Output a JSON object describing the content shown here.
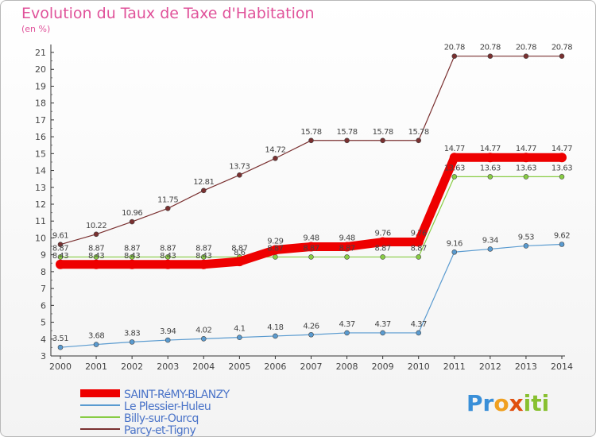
{
  "header": {
    "title": "Evolution du Taux de Taxe d'Habitation",
    "subtitle": "(en %)"
  },
  "logo": {
    "parts": [
      "Pr",
      "o",
      "x",
      "iti"
    ]
  },
  "chart_data": {
    "type": "line",
    "title": "Evolution du Taux de Taxe d'Habitation",
    "subtitle": "(en %)",
    "xlabel": "",
    "ylabel": "",
    "x": [
      2000,
      2001,
      2002,
      2003,
      2004,
      2005,
      2006,
      2007,
      2008,
      2009,
      2010,
      2011,
      2012,
      2013,
      2014
    ],
    "ylim": [
      3,
      21
    ],
    "yticks": [
      3,
      4,
      5,
      6,
      7,
      8,
      9,
      10,
      11,
      12,
      13,
      14,
      15,
      16,
      17,
      18,
      19,
      20,
      21
    ],
    "grid": false,
    "legend_position": "bottom-left",
    "series": [
      {
        "name": "SAINT-RéMY-BLANZY",
        "color": "#ee0000",
        "values": [
          8.43,
          8.43,
          8.43,
          8.43,
          8.43,
          8.6,
          9.29,
          9.48,
          9.48,
          9.76,
          9.76,
          14.77,
          14.77,
          14.77,
          14.77
        ],
        "labels": [
          "8.43",
          "8.43",
          "8.43",
          "8.43",
          "8.43",
          "8.6",
          "9.29",
          "9.48",
          "9.48",
          "9.76",
          "9.76",
          "14.77",
          "14.77",
          "14.77",
          "14.77"
        ]
      },
      {
        "name": "Le Plessier-Huleu",
        "color": "#5a9bd0",
        "values": [
          3.51,
          3.68,
          3.83,
          3.94,
          4.02,
          4.1,
          4.18,
          4.26,
          4.37,
          4.37,
          4.37,
          9.16,
          9.34,
          9.53,
          9.62
        ],
        "labels": [
          "3.51",
          "3.68",
          "3.83",
          "3.94",
          "4.02",
          "4.1",
          "4.18",
          "4.26",
          "4.37",
          "4.37",
          "4.37",
          "9.16",
          "9.34",
          "9.53",
          "9.62"
        ]
      },
      {
        "name": "Billy-sur-Ourcq",
        "color": "#88cc44",
        "values": [
          8.87,
          8.87,
          8.87,
          8.87,
          8.87,
          8.87,
          8.87,
          8.87,
          8.87,
          8.87,
          8.87,
          13.63,
          13.63,
          13.63,
          13.63
        ],
        "labels": [
          "8.87",
          "8.87",
          "8.87",
          "8.87",
          "8.87",
          "8.87",
          "8.87",
          "8.87",
          "8.87",
          "8.87",
          "8.87",
          "13.63",
          "13.63",
          "13.63",
          "13.63"
        ]
      },
      {
        "name": "Parcy-et-Tigny",
        "color": "#7a3030",
        "values": [
          9.61,
          10.22,
          10.96,
          11.75,
          12.81,
          13.73,
          14.72,
          15.78,
          15.78,
          15.78,
          15.78,
          20.78,
          20.78,
          20.78,
          20.78
        ],
        "labels": [
          "9.61",
          "10.22",
          "10.96",
          "11.75",
          "12.81",
          "13.73",
          "14.72",
          "15.78",
          "15.78",
          "15.78",
          "15.78",
          "20.78",
          "20.78",
          "20.78",
          "20.78"
        ]
      }
    ]
  }
}
